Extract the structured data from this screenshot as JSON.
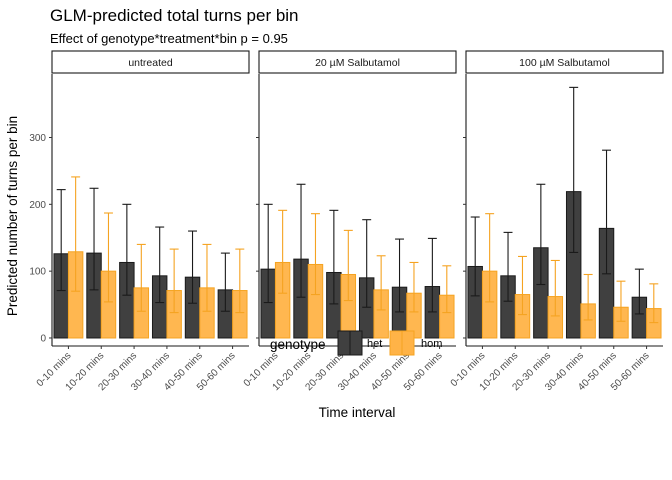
{
  "chart_data": {
    "type": "bar",
    "title": "GLM-predicted total turns per bin",
    "subtitle": "Effect of genotype*treatment*bin p = 0.95",
    "xlabel": "Time interval",
    "ylabel": "Predicted number of turns per bin",
    "ylim": [
      -12,
      395
    ],
    "yticks": [
      0,
      100,
      200,
      300
    ],
    "categories": [
      "0-10 mins",
      "10-20 mins",
      "20-30 mins",
      "30-40 mins",
      "40-50 mins",
      "50-60 mins"
    ],
    "legend": {
      "title": "genotype",
      "position": "bottom"
    },
    "facets": [
      {
        "label": "untreated",
        "series": [
          {
            "name": "het",
            "values": [
              126,
              127,
              113,
              93,
              91,
              72
            ],
            "lower": [
              71,
              72,
              64,
              53,
              52,
              40
            ],
            "upper": [
              222,
              224,
              200,
              166,
              160,
              127
            ]
          },
          {
            "name": "hom",
            "values": [
              129,
              100,
              75,
              71,
              75,
              71
            ],
            "lower": [
              70,
              54,
              40,
              38,
              40,
              38
            ],
            "upper": [
              241,
              187,
              140,
              133,
              140,
              133
            ]
          }
        ]
      },
      {
        "label": "20 µM Salbutamol",
        "series": [
          {
            "name": "het",
            "values": [
              103,
              118,
              98,
              90,
              76,
              77
            ],
            "lower": [
              53,
              61,
              51,
              46,
              39,
              39
            ],
            "upper": [
              200,
              230,
              191,
              177,
              148,
              149
            ]
          },
          {
            "name": "hom",
            "values": [
              113,
              110,
              95,
              72,
              67,
              64
            ],
            "lower": [
              67,
              65,
              56,
              42,
              39,
              38
            ],
            "upper": [
              191,
              186,
              161,
              123,
              113,
              108
            ]
          }
        ]
      },
      {
        "label": "100 µM Salbutamol",
        "series": [
          {
            "name": "het",
            "values": [
              107,
              93,
              135,
              219,
              164,
              61
            ],
            "lower": [
              63,
              55,
              80,
              128,
              96,
              36
            ],
            "upper": [
              181,
              158,
              230,
              375,
              281,
              103
            ]
          },
          {
            "name": "hom",
            "values": [
              100,
              65,
              62,
              51,
              46,
              44
            ],
            "lower": [
              54,
              35,
              33,
              27,
              25,
              23
            ],
            "upper": [
              186,
              122,
              116,
              95,
              85,
              81
            ]
          }
        ]
      }
    ],
    "colors": {
      "het": "#404040",
      "het_stroke": "#1a1a1a",
      "hom": "#FFB347",
      "hom_stroke": "#F5A321"
    }
  }
}
